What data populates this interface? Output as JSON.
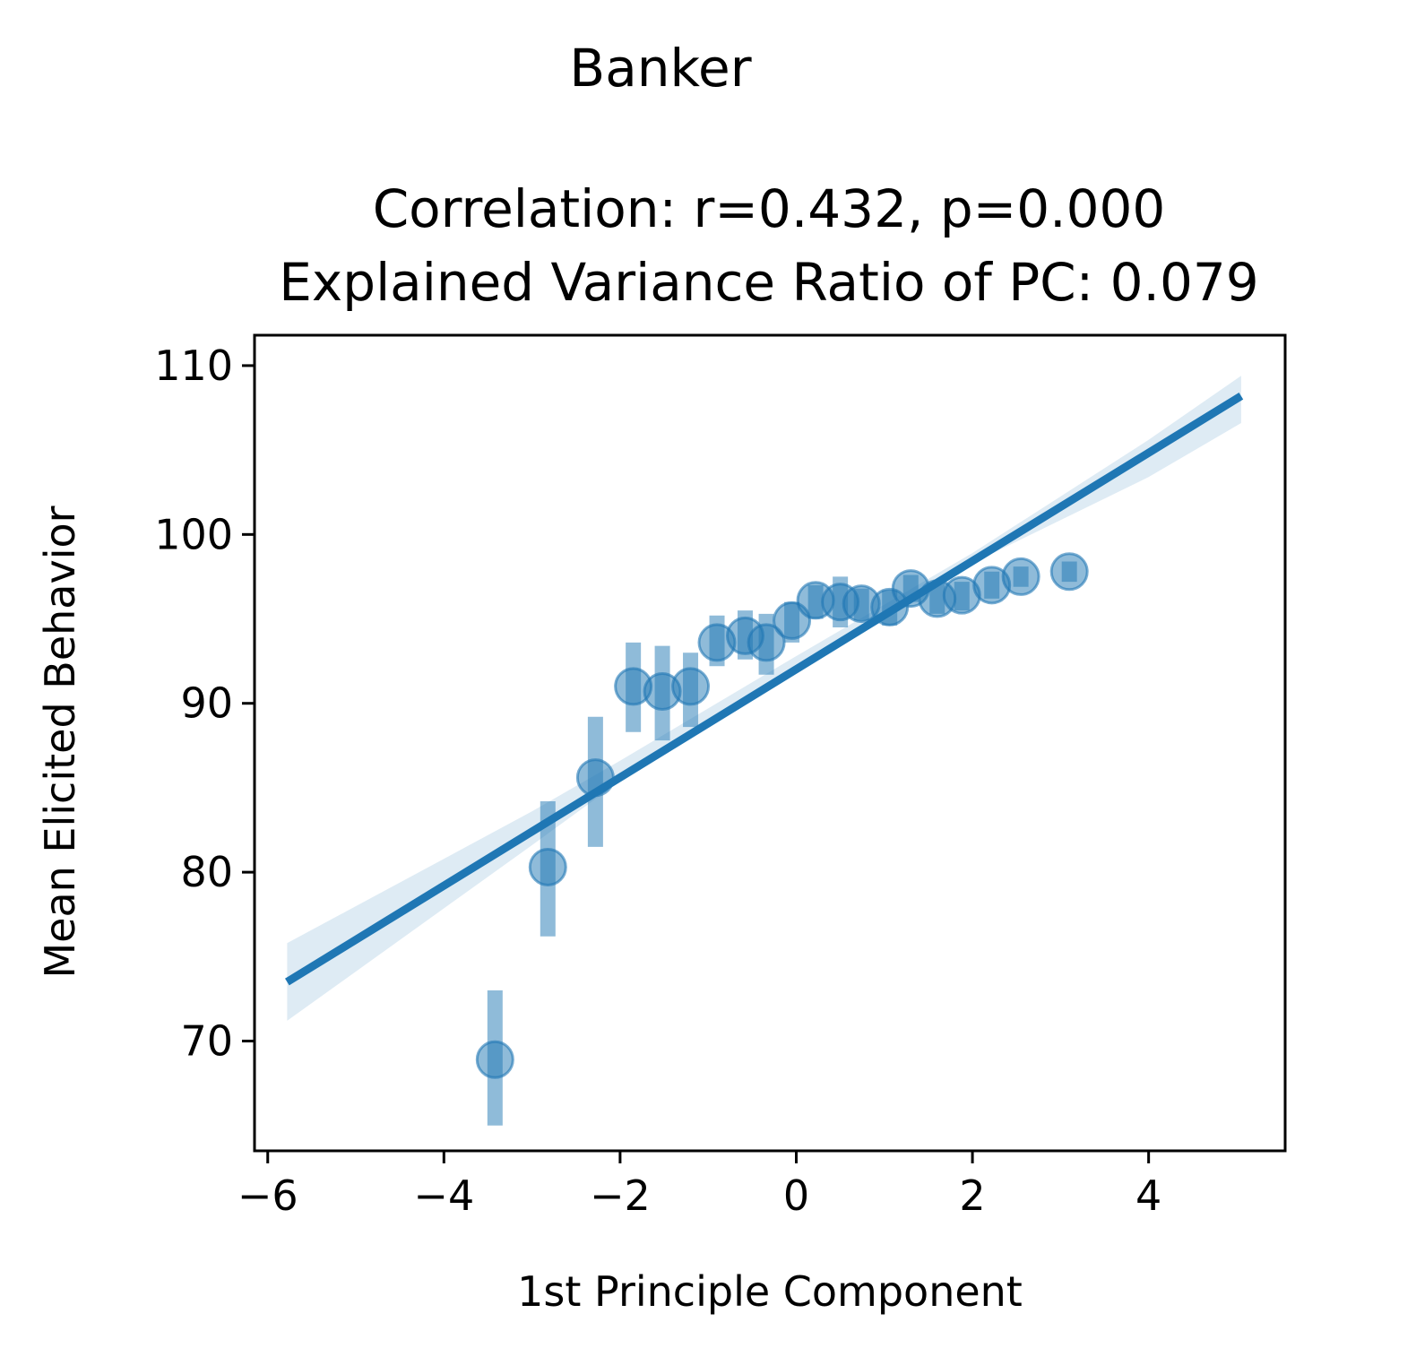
{
  "chart_data": {
    "type": "scatter",
    "suptitle": "Banker",
    "title_lines": [
      "Correlation: r=0.432, p=0.000",
      "Explained Variance Ratio of PC: 0.079"
    ],
    "xlabel": "1st Principle Component",
    "ylabel": "Mean Elicited Behavior",
    "xlim": [
      -6.15,
      5.55
    ],
    "ylim": [
      63.5,
      111.8
    ],
    "xticks": [
      -6,
      -4,
      -2,
      0,
      2,
      4
    ],
    "xtick_labels": [
      "−6",
      "−4",
      "−2",
      "0",
      "2",
      "4"
    ],
    "yticks": [
      70,
      80,
      90,
      100,
      110
    ],
    "ytick_labels": [
      "70",
      "80",
      "90",
      "100",
      "110"
    ],
    "grid": false,
    "color": "#1f77b4",
    "points": [
      {
        "x": -3.42,
        "y": 68.9,
        "ylow": 65.0,
        "yhigh": 73.0
      },
      {
        "x": -2.82,
        "y": 80.3,
        "ylow": 76.2,
        "yhigh": 84.2
      },
      {
        "x": -2.28,
        "y": 85.6,
        "ylow": 81.5,
        "yhigh": 89.2
      },
      {
        "x": -1.85,
        "y": 91.0,
        "ylow": 88.3,
        "yhigh": 93.6
      },
      {
        "x": -1.52,
        "y": 90.7,
        "ylow": 87.8,
        "yhigh": 93.4
      },
      {
        "x": -1.2,
        "y": 91.0,
        "ylow": 88.6,
        "yhigh": 93.0
      },
      {
        "x": -0.9,
        "y": 93.6,
        "ylow": 92.2,
        "yhigh": 95.2
      },
      {
        "x": -0.58,
        "y": 94.0,
        "ylow": 92.6,
        "yhigh": 95.5
      },
      {
        "x": -0.34,
        "y": 93.6,
        "ylow": 91.7,
        "yhigh": 95.3
      },
      {
        "x": -0.05,
        "y": 94.9,
        "ylow": 93.6,
        "yhigh": 96.0
      },
      {
        "x": 0.22,
        "y": 96.1,
        "ylow": 95.0,
        "yhigh": 97.0
      },
      {
        "x": 0.5,
        "y": 96.0,
        "ylow": 94.5,
        "yhigh": 97.5
      },
      {
        "x": 0.74,
        "y": 95.9,
        "ylow": 94.9,
        "yhigh": 96.8
      },
      {
        "x": 1.06,
        "y": 95.7,
        "ylow": 94.6,
        "yhigh": 96.7
      },
      {
        "x": 1.3,
        "y": 96.8,
        "ylow": 96.0,
        "yhigh": 97.6
      },
      {
        "x": 1.6,
        "y": 96.2,
        "ylow": 95.3,
        "yhigh": 97.1
      },
      {
        "x": 1.88,
        "y": 96.4,
        "ylow": 95.5,
        "yhigh": 97.2
      },
      {
        "x": 2.22,
        "y": 97.0,
        "ylow": 96.2,
        "yhigh": 97.8
      },
      {
        "x": 2.55,
        "y": 97.5,
        "ylow": 96.9,
        "yhigh": 98.1
      },
      {
        "x": 3.1,
        "y": 97.8,
        "ylow": 97.2,
        "yhigh": 98.4
      }
    ],
    "regression": {
      "x": [
        -5.78,
        5.05
      ],
      "y": [
        73.5,
        108.2
      ]
    },
    "confidence_band": {
      "x": [
        -5.78,
        -3.0,
        -2.0,
        0.0,
        2.0,
        4.0,
        5.05
      ],
      "lower": [
        71.2,
        81.6,
        85.4,
        92.2,
        98.3,
        103.4,
        106.6
      ],
      "upper": [
        75.8,
        83.6,
        86.6,
        92.8,
        98.9,
        105.6,
        109.4
      ]
    }
  }
}
